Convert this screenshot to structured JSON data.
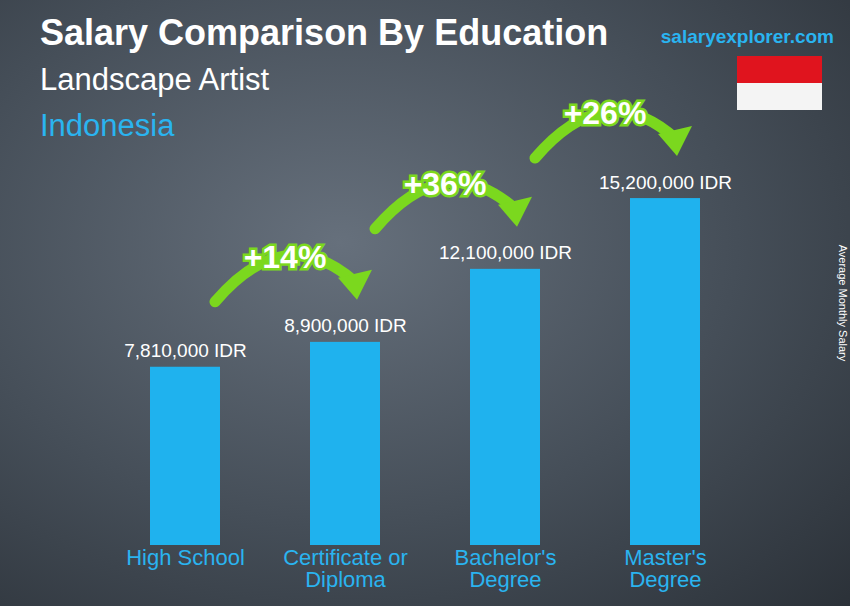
{
  "chart_data": {
    "type": "bar",
    "title": "Salary Comparison By Education",
    "subtitle": [
      "Landscape Artist",
      "Indonesia"
    ],
    "source": "salaryexplorer.com",
    "ylabel": "Average Monthly Salary",
    "categories": [
      "High School",
      "Certificate or Diploma",
      "Bachelor's Degree",
      "Master's Degree"
    ],
    "values": [
      7810000,
      8900000,
      12100000,
      15200000
    ],
    "value_labels": [
      "7,810,000 IDR",
      "8,900,000 IDR",
      "12,100,000 IDR",
      "15,200,000 IDR"
    ],
    "annotations": [
      "+14%",
      "+36%",
      "+26%"
    ],
    "color": "#1fb2ee",
    "ylim": [
      0,
      17000000
    ],
    "yticks": [],
    "grid": false,
    "data_labels": true,
    "tick_labels": false
  }
}
